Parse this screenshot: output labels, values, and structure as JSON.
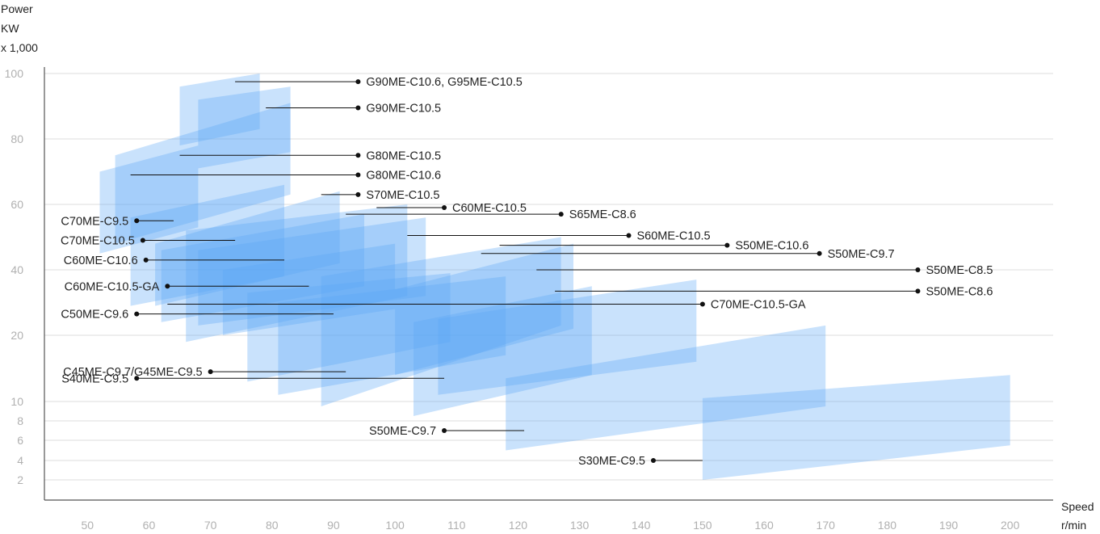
{
  "colors": {
    "band": "#5aa8f7",
    "grid": "#dddddd",
    "axis": "#555555",
    "tick": "#b0b0b0",
    "label": "#222222",
    "leader": "#111111"
  },
  "chart_data": {
    "type": "area",
    "title": "",
    "y_title_lines": [
      "Power",
      "KW",
      "x 1,000"
    ],
    "x_title_lines": [
      "Speed",
      "r/min"
    ],
    "xlim": [
      43,
      207
    ],
    "x_ticks": [
      "50",
      "60",
      "70",
      "80",
      "90",
      "100",
      "110",
      "120",
      "130",
      "140",
      "150",
      "160",
      "170",
      "180",
      "190",
      "200"
    ],
    "y_ticks": [
      "2",
      "4",
      "6",
      "8",
      "10",
      "20",
      "40",
      "60",
      "80",
      "100"
    ],
    "y_tick_values": [
      2,
      4,
      6,
      8,
      10,
      20,
      40,
      60,
      80,
      100
    ],
    "grid": true,
    "series": [
      {
        "x_min": 65,
        "x_max": 78,
        "p_bl": 78,
        "p_tl": 96,
        "p_tr": 100,
        "p_br": 83
      },
      {
        "x_min": 68,
        "x_max": 83,
        "p_bl": 71,
        "p_tl": 92,
        "p_tr": 96,
        "p_br": 76
      },
      {
        "x_min": 52,
        "x_max": 68,
        "p_bl": 45,
        "p_tl": 70,
        "p_tr": 78,
        "p_br": 53
      },
      {
        "x_min": 54.5,
        "x_max": 83,
        "p_bl": 48,
        "p_tl": 75,
        "p_tr": 91,
        "p_br": 63
      },
      {
        "x_min": 57,
        "x_max": 82,
        "p_bl": 29,
        "p_tl": 56,
        "p_tr": 66,
        "p_br": 38
      },
      {
        "x_min": 61,
        "x_max": 91,
        "p_bl": 29,
        "p_tl": 48,
        "p_tr": 64,
        "p_br": 42
      },
      {
        "x_min": 62,
        "x_max": 95,
        "p_bl": 24,
        "p_tl": 46,
        "p_tr": 57,
        "p_br": 35
      },
      {
        "x_min": 66,
        "x_max": 102,
        "p_bl": 19,
        "p_tl": 52,
        "p_tr": 60,
        "p_br": 32
      },
      {
        "x_min": 68,
        "x_max": 105,
        "p_bl": 23,
        "p_tl": 46,
        "p_tr": 56,
        "p_br": 32
      },
      {
        "x_min": 72,
        "x_max": 100,
        "p_bl": 20,
        "p_tl": 40,
        "p_tr": 48,
        "p_br": 28
      },
      {
        "x_min": 76,
        "x_max": 109,
        "p_bl": 13,
        "p_tl": 33,
        "p_tr": 39,
        "p_br": 19
      },
      {
        "x_min": 81,
        "x_max": 118,
        "p_bl": 11,
        "p_tl": 30,
        "p_tr": 38,
        "p_br": 17
      },
      {
        "x_min": 88,
        "x_max": 127,
        "p_bl": 9.5,
        "p_tl": 38,
        "p_tr": 50,
        "p_br": 23
      },
      {
        "x_min": 100,
        "x_max": 129,
        "p_bl": 14,
        "p_tl": 34,
        "p_tr": 48,
        "p_br": 22
      },
      {
        "x_min": 103,
        "x_max": 132,
        "p_bl": 8.5,
        "p_tl": 24,
        "p_tr": 35,
        "p_br": 14
      },
      {
        "x_min": 107,
        "x_max": 149,
        "p_bl": 11,
        "p_tl": 25,
        "p_tr": 37,
        "p_br": 16
      },
      {
        "x_min": 118,
        "x_max": 170,
        "p_bl": 5,
        "p_tl": 13.5,
        "p_tr": 23,
        "p_br": 9.5
      },
      {
        "x_min": 150,
        "x_max": 200,
        "p_bl": 2,
        "p_tl": 10.5,
        "p_tr": 14,
        "p_br": 5.5
      }
    ],
    "annotations": [
      {
        "text": "G90ME-C10.6, G95ME-C10.5",
        "side": "right",
        "dot_x": 94,
        "y": 97.5,
        "line_to": 74
      },
      {
        "text": "G90ME-C10.5",
        "side": "right",
        "dot_x": 94,
        "y": 89.5,
        "line_to": 79
      },
      {
        "text": "G80ME-C10.5",
        "side": "right",
        "dot_x": 94,
        "y": 75,
        "line_to": 65
      },
      {
        "text": "G80ME-C10.6",
        "side": "right",
        "dot_x": 94,
        "y": 69,
        "line_to": 57
      },
      {
        "text": "S70ME-C10.5",
        "side": "right",
        "dot_x": 94,
        "y": 63,
        "line_to": 88
      },
      {
        "text": "C60ME-C10.5",
        "side": "right",
        "dot_x": 108,
        "y": 59,
        "line_to": 97
      },
      {
        "text": "S65ME-C8.6",
        "side": "right",
        "dot_x": 127,
        "y": 57,
        "line_to": 92
      },
      {
        "text": "S60ME-C10.5",
        "side": "right",
        "dot_x": 138,
        "y": 50.5,
        "line_to": 102
      },
      {
        "text": "S50ME-C10.6",
        "side": "right",
        "dot_x": 154,
        "y": 47.5,
        "line_to": 117
      },
      {
        "text": "S50ME-C9.7",
        "side": "right",
        "dot_x": 169,
        "y": 45,
        "line_to": 114
      },
      {
        "text": "S50ME-C8.5",
        "side": "right",
        "dot_x": 185,
        "y": 40,
        "line_to": 123
      },
      {
        "text": "S50ME-C8.6",
        "side": "right",
        "dot_x": 185,
        "y": 33.5,
        "line_to": 126
      },
      {
        "text": "C70ME-C10.5-GA",
        "side": "right",
        "dot_x": 150,
        "y": 29.5,
        "line_to": 63
      },
      {
        "text": "C70ME-C9.5",
        "side": "left",
        "dot_x": 58,
        "y": 55,
        "line_to": 64
      },
      {
        "text": "C70ME-C10.5",
        "side": "left",
        "dot_x": 59,
        "y": 49,
        "line_to": 74
      },
      {
        "text": "C60ME-C10.6",
        "side": "left",
        "dot_x": 59.5,
        "y": 43,
        "line_to": 82
      },
      {
        "text": "C60ME-C10.5-GA",
        "side": "left",
        "dot_x": 63,
        "y": 35,
        "line_to": 86
      },
      {
        "text": "C50ME-C9.6",
        "side": "left",
        "dot_x": 58,
        "y": 26.5,
        "line_to": 90
      },
      {
        "text": "C45ME-C9.7/G45ME-C9.5",
        "side": "left",
        "dot_x": 70,
        "y": 14.5,
        "line_to": 92
      },
      {
        "text": "S40ME-C9.5",
        "side": "left",
        "dot_x": 58,
        "y": 13.5,
        "line_to": 108
      },
      {
        "text": "S50ME-C9.7",
        "side": "left",
        "dot_x": 108,
        "y": 7,
        "line_to": 121
      },
      {
        "text": "S30ME-C9.5",
        "side": "left",
        "dot_x": 142,
        "y": 4,
        "line_to": 150
      }
    ]
  }
}
